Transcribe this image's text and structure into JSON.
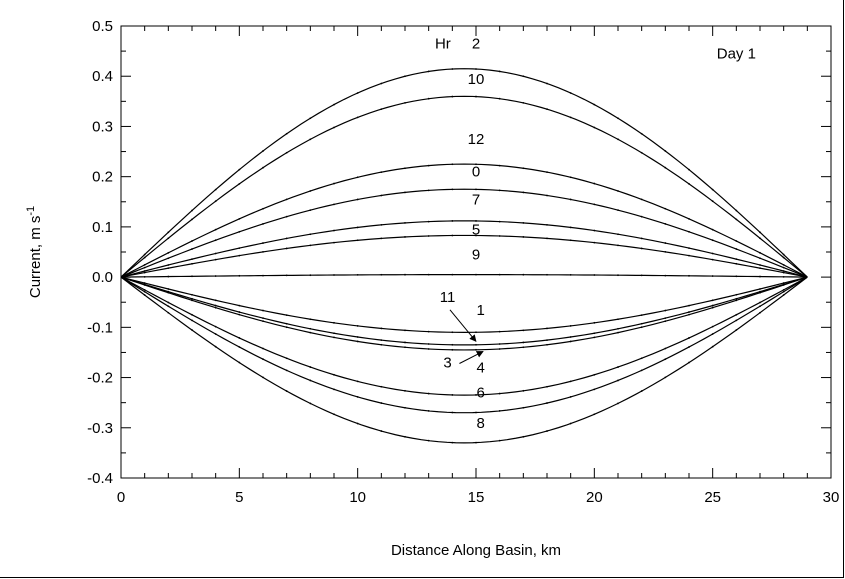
{
  "chart_data": {
    "type": "line",
    "xlabel": "Distance Along Basin, km",
    "ylabel_main": "Current, m s",
    "ylabel_sup": "-1",
    "xlim": [
      0,
      30
    ],
    "ylim": [
      -0.4,
      0.5
    ],
    "x_ticks": [
      0,
      5,
      10,
      15,
      20,
      25,
      30
    ],
    "x_tick_labels": [
      "0",
      "5",
      "10",
      "15",
      "20",
      "25",
      "30"
    ],
    "y_ticks": [
      -0.4,
      -0.3,
      -0.2,
      -0.1,
      0.0,
      0.1,
      0.2,
      0.3,
      0.4,
      0.5
    ],
    "y_tick_labels": [
      "-0.4",
      "-0.3",
      "-0.2",
      "-0.1",
      "0.0",
      "0.1",
      "0.2",
      "0.3",
      "0.4",
      "0.5"
    ],
    "grid": false,
    "basin_length_km": 29,
    "series": [
      {
        "label": "2",
        "peak": 0.415
      },
      {
        "label": "10",
        "peak": 0.36
      },
      {
        "label": "0",
        "peak": 0.225
      },
      {
        "label": "7",
        "peak": 0.175
      },
      {
        "label": "5",
        "peak": 0.112
      },
      {
        "label": "9",
        "peak": 0.083
      },
      {
        "label": "12",
        "peak": 0.005
      },
      {
        "label": "1",
        "peak": -0.11
      },
      {
        "label": "11",
        "peak": -0.135
      },
      {
        "label": "3",
        "peak": -0.145
      },
      {
        "label": "4",
        "peak": -0.235
      },
      {
        "label": "6",
        "peak": -0.27
      },
      {
        "label": "8",
        "peak": -0.33
      }
    ],
    "annotations": [
      {
        "text": "Hr",
        "x": 13.6,
        "y": 0.455
      },
      {
        "text": "2",
        "x": 15.0,
        "y": 0.455
      },
      {
        "text": "Day 1",
        "x": 26.0,
        "y": 0.435
      },
      {
        "text": "10",
        "x": 15.0,
        "y": 0.385
      },
      {
        "text": "12",
        "x": 15.0,
        "y": 0.265
      },
      {
        "text": "0",
        "x": 15.0,
        "y": 0.2
      },
      {
        "text": "7",
        "x": 15.0,
        "y": 0.145
      },
      {
        "text": "5",
        "x": 15.0,
        "y": 0.085
      },
      {
        "text": "9",
        "x": 15.0,
        "y": 0.035
      },
      {
        "text": "11",
        "x": 13.8,
        "y": -0.05
      },
      {
        "text": "1",
        "x": 15.2,
        "y": -0.075
      },
      {
        "text": "3",
        "x": 13.8,
        "y": -0.18
      },
      {
        "text": "4",
        "x": 15.2,
        "y": -0.19
      },
      {
        "text": "6",
        "x": 15.2,
        "y": -0.24
      },
      {
        "text": "8",
        "x": 15.2,
        "y": -0.3
      }
    ]
  }
}
